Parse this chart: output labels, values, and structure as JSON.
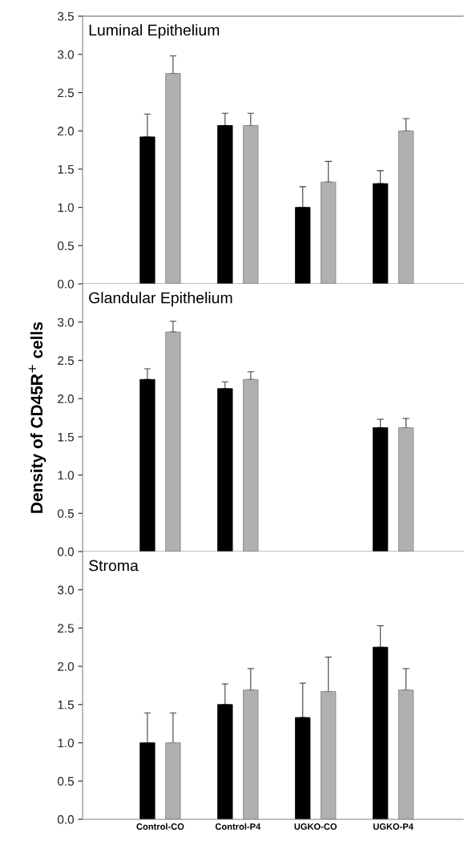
{
  "chart_data": [
    {
      "type": "bar",
      "title": "Luminal Epithelium",
      "tick_labels": "y",
      "ylim": [
        0,
        3.5
      ],
      "yticks": [
        {
          "value": 0,
          "label": "0.0"
        },
        {
          "value": 0.5,
          "label": "0.5"
        },
        {
          "value": 1,
          "label": "1.0"
        },
        {
          "value": 1.5,
          "label": "1.5"
        },
        {
          "value": 2,
          "label": "2.0"
        },
        {
          "value": 2.5,
          "label": "2.5"
        },
        {
          "value": 3,
          "label": "3.0"
        },
        {
          "value": 3.5,
          "label": "3.5"
        }
      ],
      "series": [
        {
          "color": "#000000",
          "values": [
            1.92,
            2.07,
            1.0,
            1.31
          ],
          "errors": [
            [
              1.92,
              2.22
            ],
            [
              2.07,
              2.23
            ],
            [
              1.0,
              1.27
            ],
            [
              1.31,
              1.48
            ]
          ]
        },
        {
          "color": "#b0b0b0",
          "values": [
            2.75,
            2.07,
            1.33,
            2.0
          ],
          "errors": [
            [
              2.75,
              2.98
            ],
            [
              2.07,
              2.23
            ],
            [
              1.33,
              1.6
            ],
            [
              2.0,
              2.16
            ]
          ]
        }
      ]
    },
    {
      "type": "bar",
      "title": "Glandular Epithelium",
      "ylabel": "Density of CD45R$^{+}$ cells",
      "tick_labels": "y",
      "ylim": [
        0,
        3.5
      ],
      "yticks": [
        {
          "value": 0,
          "label": "0.0"
        },
        {
          "value": 0.5,
          "label": "0.5"
        },
        {
          "value": 1,
          "label": "1.0"
        },
        {
          "value": 1.5,
          "label": "1.5"
        },
        {
          "value": 2,
          "label": "2.0"
        },
        {
          "value": 2.5,
          "label": "2.5"
        },
        {
          "value": 3,
          "label": "3.0"
        }
      ],
      "series": [
        {
          "color": "#000000",
          "values": [
            2.25,
            2.13,
            null,
            1.62
          ],
          "errors": [
            [
              2.25,
              2.39
            ],
            [
              2.13,
              2.22
            ],
            null,
            [
              1.62,
              1.73
            ]
          ]
        },
        {
          "color": "#b0b0b0",
          "values": [
            2.87,
            2.25,
            null,
            1.62
          ],
          "errors": [
            [
              2.87,
              3.01
            ],
            [
              2.25,
              2.35
            ],
            null,
            [
              1.62,
              1.74
            ]
          ]
        }
      ]
    },
    {
      "type": "bar",
      "title": "Stroma",
      "categories": [
        "Control-CO",
        "Control-P4",
        "UGKO-CO",
        "UGKO-P4"
      ],
      "ylim": [
        0,
        3.5
      ],
      "yticks": [
        {
          "value": 0,
          "label": "0.0"
        },
        {
          "value": 0.5,
          "label": "0.5"
        },
        {
          "value": 1,
          "label": "1.0"
        },
        {
          "value": 1.5,
          "label": "1.5"
        },
        {
          "value": 2,
          "label": "2.0"
        },
        {
          "value": 2.5,
          "label": "2.5"
        },
        {
          "value": 3,
          "label": "3.0"
        }
      ],
      "series": [
        {
          "color": "#000000",
          "values": [
            1.0,
            1.5,
            1.33,
            2.25
          ],
          "errors": [
            [
              1.0,
              1.39
            ],
            [
              1.5,
              1.77
            ],
            [
              1.33,
              1.78
            ],
            [
              2.25,
              2.53
            ]
          ]
        },
        {
          "color": "#b0b0b0",
          "values": [
            1.0,
            1.69,
            1.67,
            1.69
          ],
          "errors": [
            [
              1.0,
              1.39
            ],
            [
              1.69,
              1.97
            ],
            [
              1.67,
              2.12
            ],
            [
              1.69,
              1.97
            ]
          ]
        }
      ]
    }
  ]
}
